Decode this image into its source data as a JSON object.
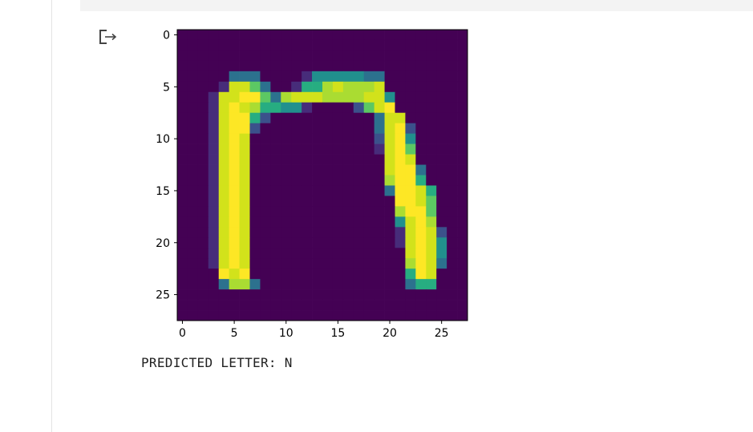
{
  "cell": {
    "output_icon": "output-redirect-icon",
    "output_text": "PREDICTED LETTER: N"
  },
  "chart_data": {
    "type": "heatmap",
    "title": "",
    "xlabel": "",
    "ylabel": "",
    "colormap": "viridis",
    "xlim": [
      -0.5,
      27.5
    ],
    "ylim": [
      27.5,
      -0.5
    ],
    "x_ticks": [
      0,
      5,
      10,
      15,
      20,
      25
    ],
    "y_ticks": [
      0,
      5,
      10,
      15,
      20,
      25
    ],
    "grid": false,
    "shape": [
      28,
      28
    ],
    "value_range": [
      0,
      255
    ],
    "rows": [
      "0000000000000000000000000000",
      "0000000000000000000000000000",
      "0000000000000000000000000000",
      "0000000000000000000000000000",
      "0000033300001444443300000000",
      "0000188630015578777800000000",
      "0001889963788877778840000000",
      "0001898755441000026890000000",
      "0001899520000000000388000000",
      "0001899200000000000389200000",
      "0001898000000000000289400000",
      "0001898000000000000189600000",
      "0001898000000000000089800000",
      "0001898000000000000089930000",
      "0001898000000000000079950000",
      "0001898000000000000039985000",
      "0001898000000000000009986000",
      "0001898000000000000007996000",
      "0001898000000000000004897000",
      "0001898000000000000001898200",
      "0001898000000000000001898400",
      "0001898000000000000000898400",
      "0001898000000000000000798300",
      "0000989000000000000000598000",
      "0000377300000000000000355000",
      "0000000000000000000000000000",
      "0000000000000000000000000000",
      "0000000000000000000000000000"
    ]
  }
}
